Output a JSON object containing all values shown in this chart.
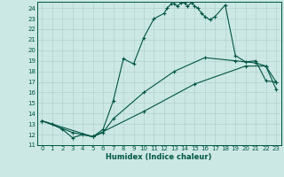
{
  "xlabel": "Humidex (Indice chaleur)",
  "xlim": [
    -0.5,
    23.5
  ],
  "ylim": [
    11,
    24.6
  ],
  "yticks": [
    11,
    12,
    13,
    14,
    15,
    16,
    17,
    18,
    19,
    20,
    21,
    22,
    23,
    24
  ],
  "xticks": [
    0,
    1,
    2,
    3,
    4,
    5,
    6,
    7,
    8,
    9,
    10,
    11,
    12,
    13,
    14,
    15,
    16,
    17,
    18,
    19,
    20,
    21,
    22,
    23
  ],
  "bg_color": "#cce8e4",
  "grid_color": "#aacccc",
  "line_color": "#005544",
  "s1_x": [
    0,
    1,
    2,
    3,
    4,
    5,
    6,
    7,
    8,
    9,
    10,
    11,
    12,
    12.3,
    12.7,
    13,
    13.3,
    13.7,
    14,
    14.3,
    14.7,
    15,
    15.3,
    15.7,
    16,
    16.5,
    17,
    18,
    19,
    20,
    21,
    22,
    23
  ],
  "s1_y": [
    13.3,
    13.0,
    12.5,
    11.7,
    12.0,
    11.8,
    12.5,
    15.2,
    19.2,
    18.7,
    21.2,
    23.0,
    23.5,
    24.0,
    24.4,
    24.4,
    24.2,
    24.5,
    24.5,
    24.2,
    24.5,
    24.2,
    24.0,
    23.5,
    23.2,
    22.9,
    23.2,
    24.3,
    19.5,
    18.9,
    19.0,
    17.1,
    17.0
  ],
  "s2_x": [
    0,
    3,
    5,
    6,
    7,
    10,
    13,
    16,
    19,
    21,
    22,
    23
  ],
  "s2_y": [
    13.3,
    12.2,
    11.8,
    12.2,
    13.5,
    16.0,
    18.0,
    19.3,
    19.0,
    18.8,
    18.5,
    17.0
  ],
  "s3_x": [
    0,
    5,
    10,
    15,
    20,
    22,
    23
  ],
  "s3_y": [
    13.3,
    11.8,
    14.2,
    16.8,
    18.5,
    18.5,
    16.3
  ]
}
